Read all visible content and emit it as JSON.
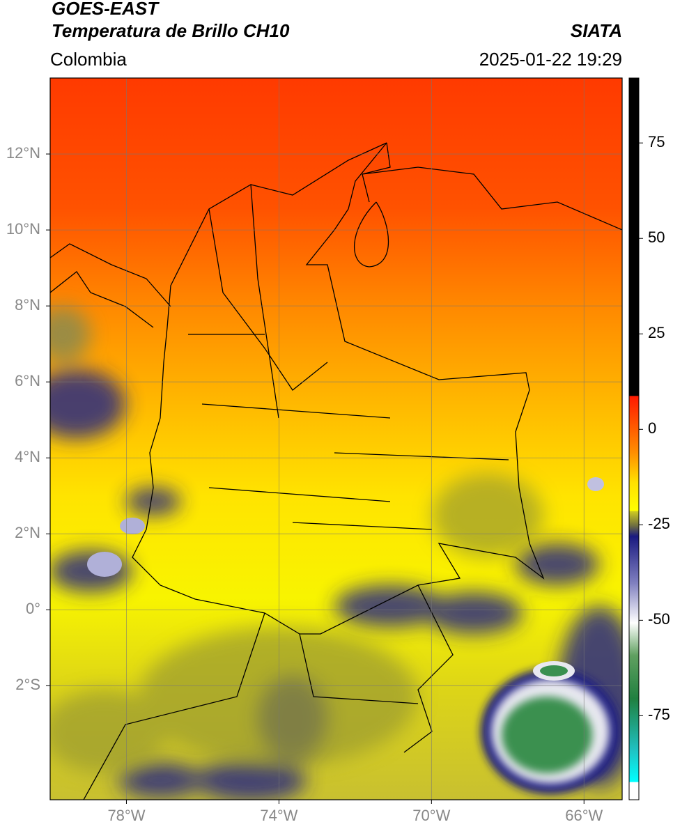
{
  "header": {
    "title": "GOES-EAST",
    "subtitle": "Temperatura de Brillo CH10",
    "source": "SIATA",
    "region": "Colombia",
    "datetime": "2025-01-22 19:29"
  },
  "map": {
    "xlim": [
      -80,
      -65
    ],
    "ylim": [
      -5,
      14
    ],
    "grid": true,
    "xticks": [
      {
        "value": -78,
        "label": "78°W"
      },
      {
        "value": -74,
        "label": "74°W"
      },
      {
        "value": -70,
        "label": "70°W"
      },
      {
        "value": -66,
        "label": "66°W"
      }
    ],
    "yticks": [
      {
        "value": 12,
        "label": "12°N"
      },
      {
        "value": 10,
        "label": "10°N"
      },
      {
        "value": 8,
        "label": "8°N"
      },
      {
        "value": 6,
        "label": "6°N"
      },
      {
        "value": 4,
        "label": "4°N"
      },
      {
        "value": 2,
        "label": "2°N"
      },
      {
        "value": 0,
        "label": "0°"
      },
      {
        "value": -2,
        "label": "2°S"
      }
    ]
  },
  "colorbar": {
    "ylim": [
      -97,
      92
    ],
    "yticks": [
      75,
      50,
      25,
      0,
      -25,
      -50,
      -75
    ]
  }
}
